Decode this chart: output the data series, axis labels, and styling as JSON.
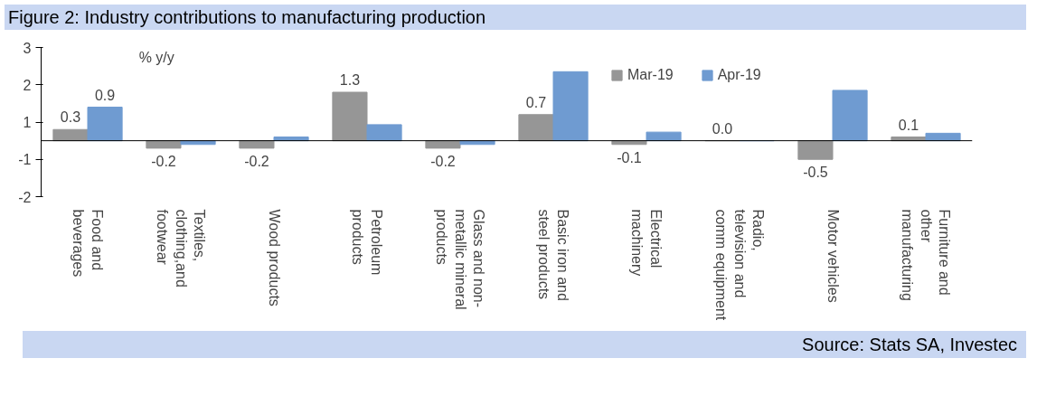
{
  "chart_data": {
    "type": "bar",
    "title": "Figure 2: Industry contributions to manufacturing production",
    "ylabel": "% y/y",
    "categories": [
      "Food and beverages",
      "Textiles, clothing,and footwear",
      "Wood products",
      "Petroleum products",
      "Glass and non-metallic mineral products",
      "Basic iron and steel products",
      "Electrical machinery",
      "Radio, television and comm equipment",
      "Motor vehicles",
      "Furniture and other manufacturing"
    ],
    "series": [
      {
        "name": "Mar-19",
        "color": "#969696",
        "values": [
          0.3,
          -0.2,
          -0.2,
          1.3,
          -0.2,
          0.7,
          -0.1,
          0.0,
          -0.5,
          0.1
        ],
        "value_labels": [
          "0.3",
          "-0.2",
          "-0.2",
          "1.3",
          "-0.2",
          "0.7",
          "-0.1",
          "0.0",
          "-0.5",
          "0.1"
        ]
      },
      {
        "name": "Apr-19",
        "color": "#6f9bd1",
        "values": [
          0.9,
          -0.1,
          0.1,
          0.43,
          -0.1,
          1.85,
          0.23,
          0.0,
          1.35,
          0.2
        ],
        "value_labels": [
          "0.9",
          null,
          null,
          null,
          null,
          null,
          null,
          null,
          null,
          null
        ]
      }
    ],
    "ylim": [
      -1.5,
      2.5
    ],
    "yticks": [
      {
        "value": -1.5,
        "label": "-2"
      },
      {
        "value": -0.5,
        "label": "-1"
      },
      {
        "value": 0.5,
        "label": "1"
      },
      {
        "value": 1.5,
        "label": "2"
      },
      {
        "value": 2.5,
        "label": "3"
      }
    ],
    "legend": "top right",
    "grid": false,
    "annotations": [
      "Source: Stats SA, Investec"
    ]
  }
}
